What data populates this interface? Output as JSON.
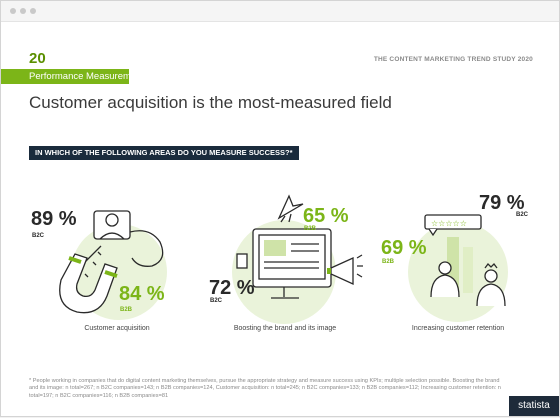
{
  "slide": {
    "number": "20",
    "section": "Performance Measurement",
    "study_title": "THE CONTENT MARKETING TREND STUDY 2020",
    "headline": "Customer acquisition is the most-measured field",
    "question": "IN WHICH OF THE FOLLOWING AREAS DO YOU MEASURE SUCCESS?*",
    "brand": "statista"
  },
  "areas": [
    {
      "caption": "Customer acquisition",
      "b2c_value": "89 %",
      "b2c_label": "B2C",
      "b2b_value": "84 %",
      "b2b_label": "B2B",
      "icon": "magnet-person-icon"
    },
    {
      "caption": "Boosting the brand and its image",
      "b2c_value": "72 %",
      "b2c_label": "B2C",
      "b2b_value": "65 %",
      "b2b_label": "B2B",
      "icon": "monitor-megaphone-rocket-icon"
    },
    {
      "caption": "Increasing customer retention",
      "b2c_value": "79 %",
      "b2c_label": "B2C",
      "b2b_value": "69 %",
      "b2b_label": "B2B",
      "icon": "customers-rating-icon"
    }
  ],
  "footnote": "* People working in companies that do digital content marketing themselves, pursue the appropriate strategy and measure success using KPIs; multiple selection possible. Boosting the brand and its image: n total=267; n B2C companies=143; n B2B companies=124, Customer acquisition: n total=245; n B2C companies=133; n B2B companies=112; Increasing customer retention: n total=197; n B2C companies=116; n B2B companies=81",
  "colors": {
    "accent_green": "#7cb518",
    "circle_green": "#eaf3da",
    "dark_navy": "#1a2b3c",
    "text_dark": "#2a2a2a"
  }
}
